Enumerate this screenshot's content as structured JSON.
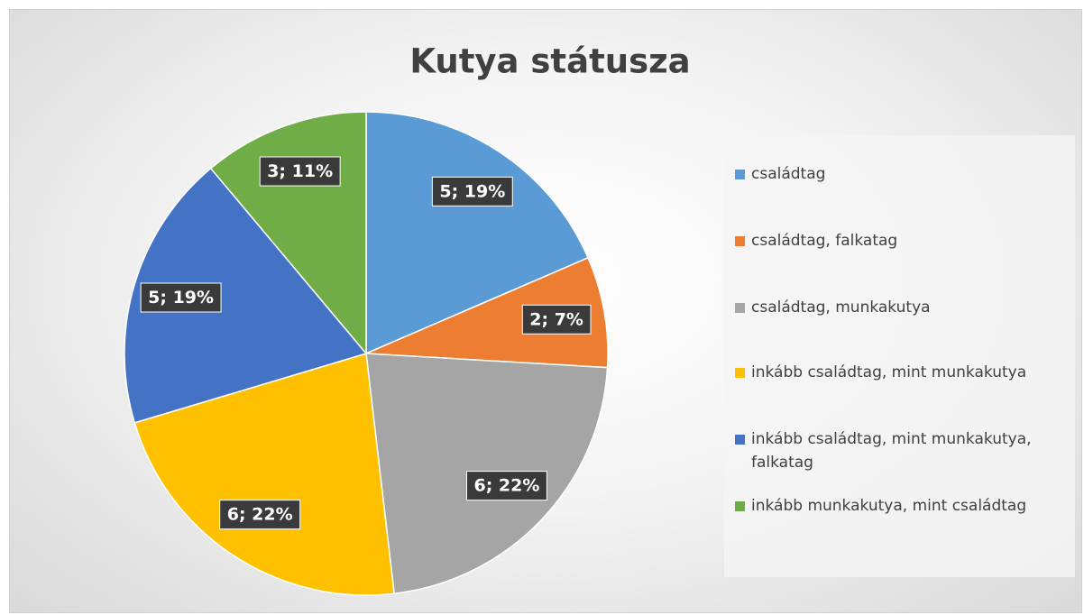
{
  "chart_data": {
    "type": "pie",
    "title": "Kutya státusza",
    "categories": [
      "családtag",
      "családtag, falkatag",
      "családtag, munkakutya",
      "inkább családtag, mint munkakutya",
      "inkább családtag, mint munkakutya, falkatag",
      "inkább munkakutya, mint családtag"
    ],
    "values": [
      5,
      2,
      6,
      6,
      5,
      3
    ],
    "value_labels": [
      "5; 19%",
      "2; 7%",
      "6; 22%",
      "6; 22%",
      "5; 19%",
      "3; 11%"
    ],
    "colors": [
      "#5b9bd5",
      "#ed7d31",
      "#a5a5a5",
      "#ffc000",
      "#4472c4",
      "#70ad47"
    ],
    "legend": "right"
  }
}
